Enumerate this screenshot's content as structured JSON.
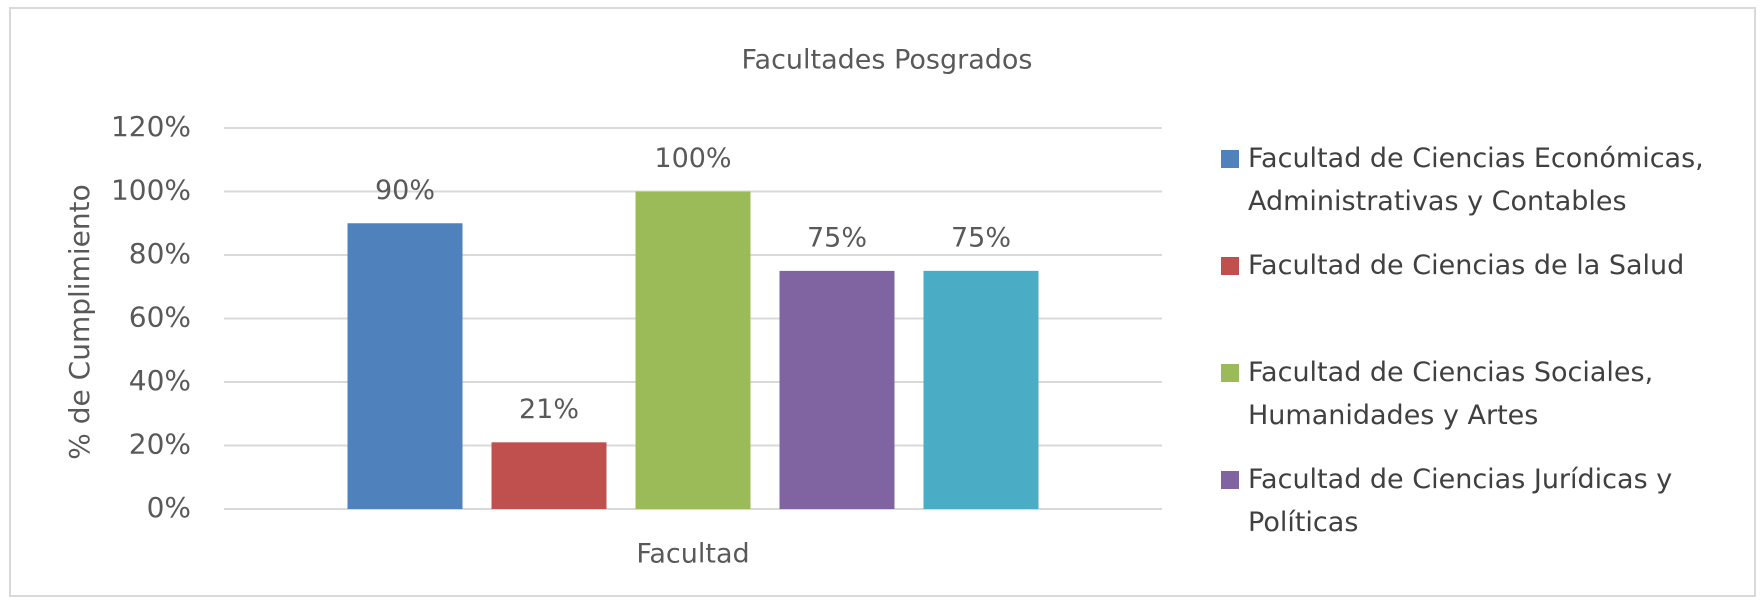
{
  "chart_data": {
    "type": "bar",
    "title": "Facultades Posgrados",
    "xlabel": "Facultad",
    "ylabel": "% de Cumplimiento",
    "categories": [
      "Facultad"
    ],
    "series": [
      {
        "name": "Facultad de Ciencias Económicas, Administrativas y Contables",
        "color": "#4f81bd",
        "values": [
          90
        ],
        "value_labels": [
          "90%"
        ]
      },
      {
        "name": "Facultad de Ciencias de la Salud",
        "color": "#c0504d",
        "values": [
          21
        ],
        "value_labels": [
          "21%"
        ]
      },
      {
        "name": "Facultad de Ciencias Sociales, Humanidades y Artes",
        "color": "#9bbb59",
        "values": [
          100
        ],
        "value_labels": [
          "100%"
        ]
      },
      {
        "name": "Facultad de Ciencias Jurídicas y Políticas",
        "color": "#8064a2",
        "values": [
          75
        ],
        "value_labels": [
          "75%"
        ]
      },
      {
        "color": "#4bacc6",
        "values": [
          75
        ],
        "value_labels": [
          "75%"
        ]
      }
    ],
    "ylim": [
      0,
      120
    ],
    "yticks": [
      {
        "value": 0,
        "label": "0%"
      },
      {
        "value": 20,
        "label": "20%"
      },
      {
        "value": 40,
        "label": "40%"
      },
      {
        "value": 60,
        "label": "60%"
      },
      {
        "value": 80,
        "label": "80%"
      },
      {
        "value": 100,
        "label": "100%"
      },
      {
        "value": 120,
        "label": "120%"
      }
    ],
    "grid": true,
    "legend": "right"
  }
}
